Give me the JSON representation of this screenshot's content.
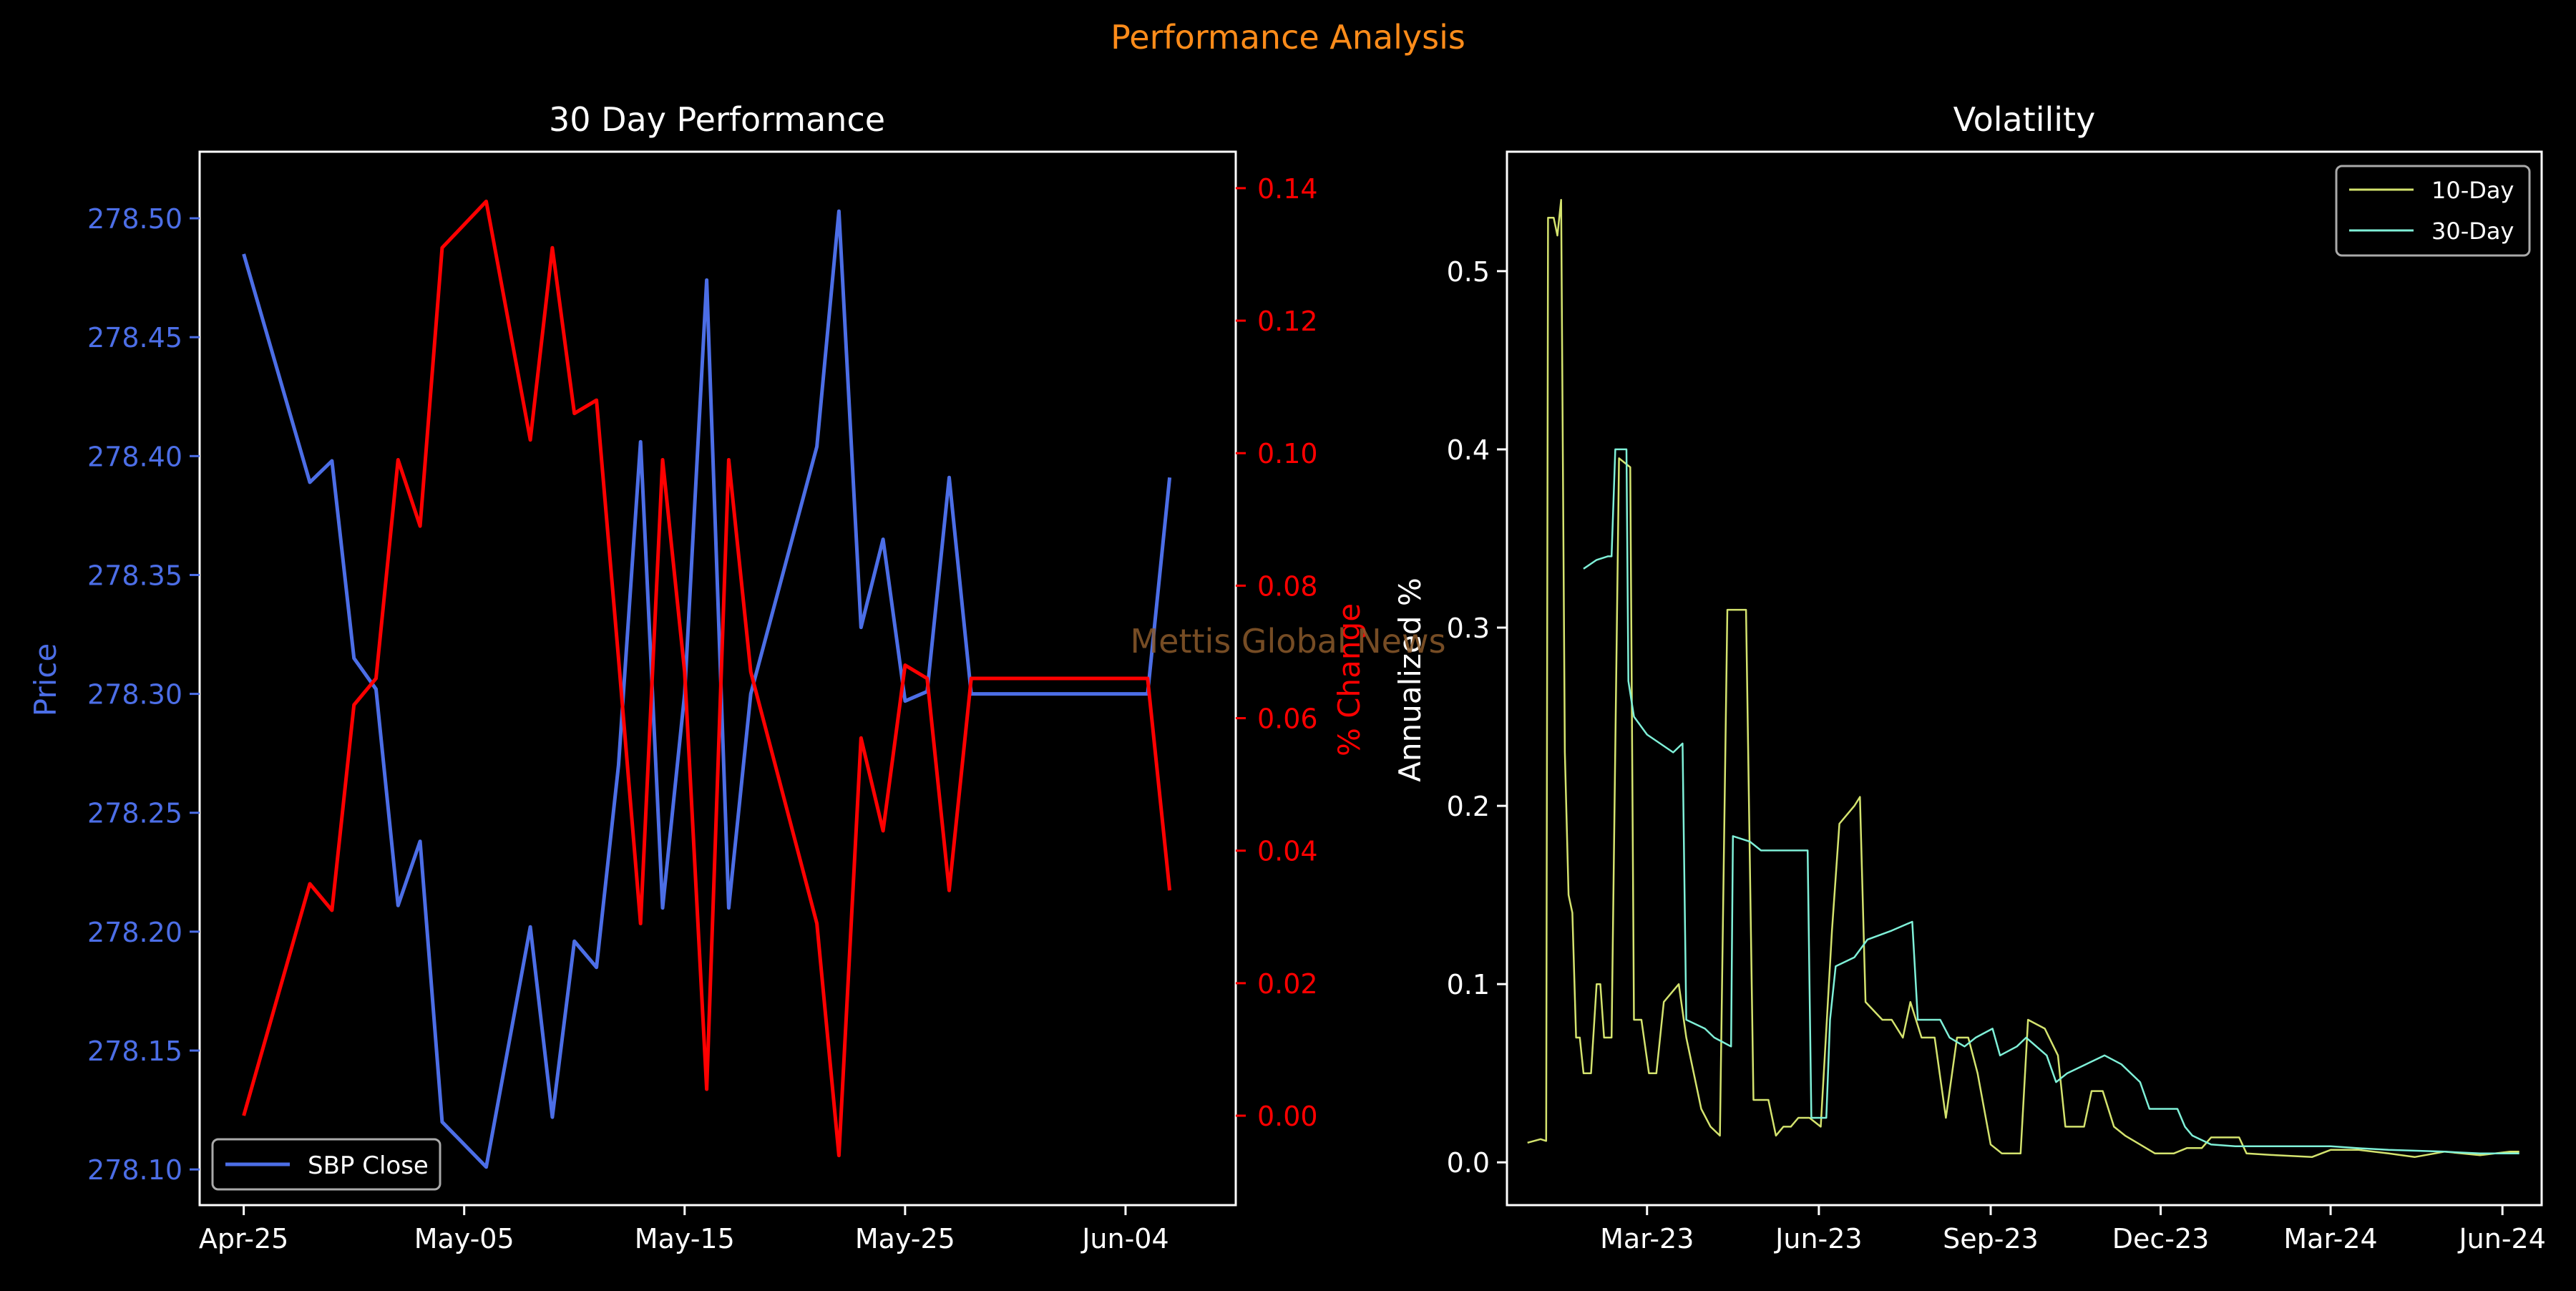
{
  "page_title": "Performance Analysis",
  "watermark": "Mettis Global News",
  "colors": {
    "background": "#000000",
    "title": "#ff8c1a",
    "price": "#4c6ee6",
    "pct_change": "#ff0000",
    "vol10": "#d4e36e",
    "vol30": "#7ff0d8",
    "axis": "#ffffff",
    "watermark": "#8b5a2b"
  },
  "chart_data": [
    {
      "type": "line",
      "title": "30 Day Performance",
      "xlabel": "",
      "ylabel": "Price",
      "ylabel_right": "% Change",
      "x": [
        "2025-04-25",
        "2025-04-28",
        "2025-04-29",
        "2025-04-30",
        "2025-05-01",
        "2025-05-02",
        "2025-05-03",
        "2025-05-04",
        "2025-05-06",
        "2025-05-08",
        "2025-05-09",
        "2025-05-10",
        "2025-05-11",
        "2025-05-12",
        "2025-05-13",
        "2025-05-14",
        "2025-05-15",
        "2025-05-16",
        "2025-05-17",
        "2025-05-18",
        "2025-05-21",
        "2025-05-22",
        "2025-05-23",
        "2025-05-24",
        "2025-05-25",
        "2025-05-26",
        "2025-05-27",
        "2025-05-28",
        "2025-05-29",
        "2025-05-30",
        "2025-06-03",
        "2025-06-04",
        "2025-06-05",
        "2025-06-06"
      ],
      "x_ticks": [
        "Apr-25",
        "May-05",
        "May-15",
        "May-25",
        "Jun-04"
      ],
      "x_tick_dates": [
        "2025-04-25",
        "2025-05-05",
        "2025-05-15",
        "2025-05-25",
        "2025-06-04"
      ],
      "xlim": [
        "2025-04-23",
        "2025-06-09"
      ],
      "ylim": [
        278.085,
        278.528
      ],
      "y_ticks": [
        278.1,
        278.15,
        278.2,
        278.25,
        278.3,
        278.35,
        278.4,
        278.45,
        278.5
      ],
      "y2lim": [
        -0.0135,
        0.1455
      ],
      "y2_ticks": [
        0.0,
        0.02,
        0.04,
        0.06,
        0.08,
        0.1,
        0.12,
        0.14
      ],
      "legend": "lower-left",
      "series": [
        {
          "name": "SBP Close",
          "axis": "left",
          "values": [
            278.485,
            278.389,
            278.398,
            278.315,
            278.302,
            278.211,
            278.238,
            278.12,
            278.101,
            278.202,
            278.122,
            278.196,
            278.185,
            278.27,
            278.406,
            278.21,
            278.3,
            278.474,
            278.21,
            278.3,
            278.404,
            278.503,
            278.328,
            278.365,
            278.297,
            278.301,
            278.391,
            278.3,
            278.3,
            278.3,
            278.3,
            278.3,
            278.3,
            278.391
          ]
        },
        {
          "name": "% Change",
          "axis": "right",
          "values": [
            0.0,
            0.035,
            0.031,
            0.062,
            0.066,
            0.099,
            0.089,
            0.131,
            0.138,
            0.102,
            0.131,
            0.106,
            0.108,
            0.069,
            0.029,
            0.099,
            0.067,
            0.004,
            0.099,
            0.067,
            0.029,
            -0.006,
            0.057,
            0.043,
            0.068,
            0.066,
            0.034,
            0.066,
            0.066,
            0.066,
            0.066,
            0.066,
            0.066,
            0.034
          ]
        }
      ]
    },
    {
      "type": "line",
      "title": "Volatility",
      "xlabel": "",
      "ylabel": "Annualized %",
      "x_ticks": [
        "Mar-23",
        "Jun-23",
        "Sep-23",
        "Dec-23",
        "Mar-24",
        "Jun-24"
      ],
      "x_tick_dates": [
        "2023-03-01",
        "2023-06-01",
        "2023-09-01",
        "2023-12-01",
        "2024-03-01",
        "2024-06-01"
      ],
      "xlim": [
        "2022-12-16",
        "2024-06-22"
      ],
      "ylim": [
        -0.024,
        0.567
      ],
      "y_ticks": [
        0.0,
        0.1,
        0.2,
        0.3,
        0.4,
        0.5
      ],
      "legend": "top-right",
      "series": [
        {
          "name": "10-Day",
          "points": [
            [
              "2022-12-27",
              0.011
            ],
            [
              "2023-01-03",
              0.013
            ],
            [
              "2023-01-06",
              0.012
            ],
            [
              "2023-01-07",
              0.53
            ],
            [
              "2023-01-10",
              0.53
            ],
            [
              "2023-01-12",
              0.52
            ],
            [
              "2023-01-14",
              0.54
            ],
            [
              "2023-01-16",
              0.23
            ],
            [
              "2023-01-18",
              0.15
            ],
            [
              "2023-01-20",
              0.14
            ],
            [
              "2023-01-22",
              0.07
            ],
            [
              "2023-01-24",
              0.07
            ],
            [
              "2023-01-26",
              0.05
            ],
            [
              "2023-01-30",
              0.05
            ],
            [
              "2023-02-02",
              0.1
            ],
            [
              "2023-02-04",
              0.1
            ],
            [
              "2023-02-06",
              0.07
            ],
            [
              "2023-02-10",
              0.07
            ],
            [
              "2023-02-14",
              0.395
            ],
            [
              "2023-02-20",
              0.39
            ],
            [
              "2023-02-22",
              0.08
            ],
            [
              "2023-02-26",
              0.08
            ],
            [
              "2023-03-02",
              0.05
            ],
            [
              "2023-03-06",
              0.05
            ],
            [
              "2023-03-10",
              0.09
            ],
            [
              "2023-03-18",
              0.1
            ],
            [
              "2023-03-22",
              0.07
            ],
            [
              "2023-03-30",
              0.03
            ],
            [
              "2023-04-04",
              0.02
            ],
            [
              "2023-04-09",
              0.015
            ],
            [
              "2023-04-13",
              0.31
            ],
            [
              "2023-04-23",
              0.31
            ],
            [
              "2023-04-27",
              0.035
            ],
            [
              "2023-05-05",
              0.035
            ],
            [
              "2023-05-09",
              0.015
            ],
            [
              "2023-05-13",
              0.02
            ],
            [
              "2023-05-17",
              0.02
            ],
            [
              "2023-05-21",
              0.025
            ],
            [
              "2023-05-27",
              0.025
            ],
            [
              "2023-06-02",
              0.02
            ],
            [
              "2023-06-08",
              0.13
            ],
            [
              "2023-06-12",
              0.19
            ],
            [
              "2023-06-20",
              0.2
            ],
            [
              "2023-06-23",
              0.205
            ],
            [
              "2023-06-26",
              0.09
            ],
            [
              "2023-07-05",
              0.08
            ],
            [
              "2023-07-10",
              0.08
            ],
            [
              "2023-07-16",
              0.07
            ],
            [
              "2023-07-20",
              0.09
            ],
            [
              "2023-07-26",
              0.07
            ],
            [
              "2023-08-02",
              0.07
            ],
            [
              "2023-08-08",
              0.025
            ],
            [
              "2023-08-14",
              0.07
            ],
            [
              "2023-08-20",
              0.07
            ],
            [
              "2023-08-25",
              0.05
            ],
            [
              "2023-09-01",
              0.01
            ],
            [
              "2023-09-07",
              0.005
            ],
            [
              "2023-09-17",
              0.005
            ],
            [
              "2023-09-21",
              0.08
            ],
            [
              "2023-09-30",
              0.075
            ],
            [
              "2023-10-07",
              0.06
            ],
            [
              "2023-10-11",
              0.02
            ],
            [
              "2023-10-21",
              0.02
            ],
            [
              "2023-10-25",
              0.04
            ],
            [
              "2023-10-31",
              0.04
            ],
            [
              "2023-11-06",
              0.02
            ],
            [
              "2023-11-12",
              0.015
            ],
            [
              "2023-11-20",
              0.01
            ],
            [
              "2023-11-28",
              0.005
            ],
            [
              "2023-12-08",
              0.005
            ],
            [
              "2023-12-15",
              0.008
            ],
            [
              "2023-12-23",
              0.008
            ],
            [
              "2023-12-28",
              0.014
            ],
            [
              "2024-01-12",
              0.014
            ],
            [
              "2024-01-16",
              0.005
            ],
            [
              "2024-02-01",
              0.004
            ],
            [
              "2024-02-20",
              0.003
            ],
            [
              "2024-03-01",
              0.007
            ],
            [
              "2024-03-16",
              0.007
            ],
            [
              "2024-04-01",
              0.005
            ],
            [
              "2024-04-15",
              0.003
            ],
            [
              "2024-05-01",
              0.006
            ],
            [
              "2024-05-20",
              0.004
            ],
            [
              "2024-06-05",
              0.006
            ],
            [
              "2024-06-10",
              0.006
            ]
          ]
        },
        {
          "name": "30-Day",
          "points": [
            [
              "2023-01-26",
              0.333
            ],
            [
              "2023-02-02",
              0.338
            ],
            [
              "2023-02-08",
              0.34
            ],
            [
              "2023-02-10",
              0.34
            ],
            [
              "2023-02-12",
              0.4
            ],
            [
              "2023-02-18",
              0.4
            ],
            [
              "2023-02-19",
              0.27
            ],
            [
              "2023-02-22",
              0.25
            ],
            [
              "2023-03-01",
              0.24
            ],
            [
              "2023-03-15",
              0.23
            ],
            [
              "2023-03-20",
              0.235
            ],
            [
              "2023-03-22",
              0.08
            ],
            [
              "2023-04-01",
              0.075
            ],
            [
              "2023-04-06",
              0.07
            ],
            [
              "2023-04-15",
              0.065
            ],
            [
              "2023-04-16",
              0.183
            ],
            [
              "2023-04-25",
              0.18
            ],
            [
              "2023-05-01",
              0.175
            ],
            [
              "2023-05-26",
              0.175
            ],
            [
              "2023-05-28",
              0.025
            ],
            [
              "2023-06-05",
              0.025
            ],
            [
              "2023-06-07",
              0.08
            ],
            [
              "2023-06-10",
              0.11
            ],
            [
              "2023-06-20",
              0.115
            ],
            [
              "2023-06-27",
              0.125
            ],
            [
              "2023-07-10",
              0.13
            ],
            [
              "2023-07-21",
              0.135
            ],
            [
              "2023-07-24",
              0.08
            ],
            [
              "2023-08-05",
              0.08
            ],
            [
              "2023-08-10",
              0.07
            ],
            [
              "2023-08-18",
              0.065
            ],
            [
              "2023-08-24",
              0.07
            ],
            [
              "2023-09-02",
              0.075
            ],
            [
              "2023-09-06",
              0.06
            ],
            [
              "2023-09-15",
              0.065
            ],
            [
              "2023-09-20",
              0.07
            ],
            [
              "2023-10-01",
              0.06
            ],
            [
              "2023-10-06",
              0.045
            ],
            [
              "2023-10-12",
              0.05
            ],
            [
              "2023-10-22",
              0.055
            ],
            [
              "2023-11-01",
              0.06
            ],
            [
              "2023-11-10",
              0.055
            ],
            [
              "2023-11-20",
              0.045
            ],
            [
              "2023-11-25",
              0.03
            ],
            [
              "2023-12-10",
              0.03
            ],
            [
              "2023-12-14",
              0.02
            ],
            [
              "2023-12-18",
              0.015
            ],
            [
              "2023-12-28",
              0.01
            ],
            [
              "2024-01-10",
              0.009
            ],
            [
              "2024-02-01",
              0.009
            ],
            [
              "2024-03-01",
              0.009
            ],
            [
              "2024-03-15",
              0.008
            ],
            [
              "2024-04-01",
              0.007
            ],
            [
              "2024-05-01",
              0.006
            ],
            [
              "2024-05-20",
              0.005
            ],
            [
              "2024-06-10",
              0.005
            ]
          ]
        }
      ]
    }
  ]
}
